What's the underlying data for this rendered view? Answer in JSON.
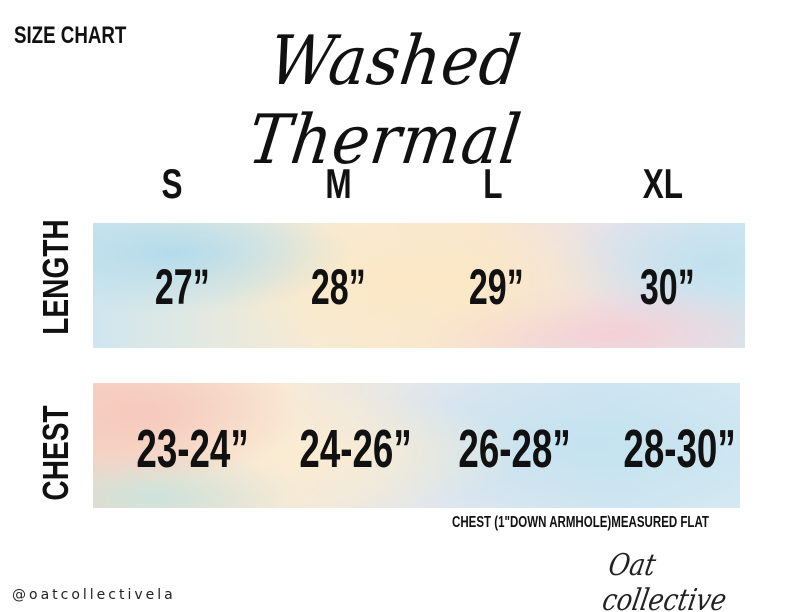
{
  "header": {
    "label": "SIZE CHART",
    "title": "Washed Thermal"
  },
  "sizes": [
    "S",
    "M",
    "L",
    "XL"
  ],
  "rows": [
    {
      "label": "LENGTH",
      "values": [
        "27”",
        "28”",
        "29”",
        "30”"
      ]
    },
    {
      "label": "CHEST",
      "values": [
        "23-24”",
        "24-26”",
        "26-28”",
        "28-30”"
      ]
    }
  ],
  "chart_data": {
    "type": "table",
    "columns": [
      "S",
      "M",
      "L",
      "XL"
    ],
    "rows": [
      {
        "label": "LENGTH",
        "values": [
          "27\"",
          "28\"",
          "29\"",
          "30\""
        ]
      },
      {
        "label": "CHEST",
        "values": [
          "23-24\"",
          "24-26\"",
          "26-28\"",
          "28-30\""
        ]
      }
    ]
  },
  "note": "CHEST (1\"DOWN ARMHOLE)MEASURED FLAT",
  "footer": {
    "handle": "@oatcollectivela",
    "logo": "Oat collective"
  },
  "colors": {
    "text": "#111111",
    "band_blue": "#cfe6ef",
    "band_peach": "#f8ebd2",
    "band_pink": "#f5ced4"
  }
}
